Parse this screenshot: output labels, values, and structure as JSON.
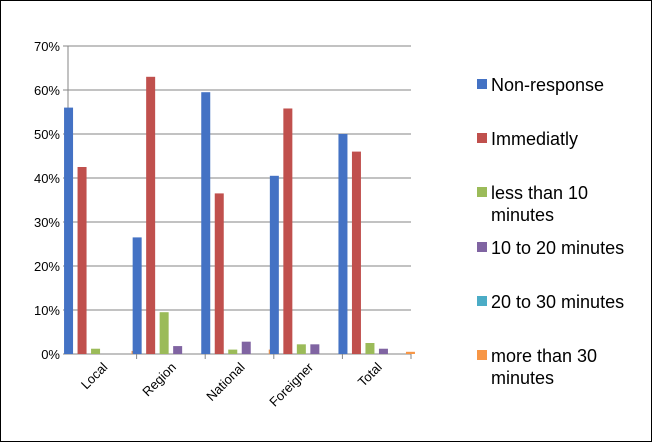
{
  "chart_data": {
    "type": "bar",
    "title": "",
    "xlabel": "",
    "ylabel": "",
    "categories": [
      "Local",
      "Region",
      "National",
      "Foreigner",
      "Total"
    ],
    "ylim": [
      0,
      0.7
    ],
    "yticks": [
      "0%",
      "10%",
      "20%",
      "30%",
      "40%",
      "50%",
      "60%",
      "70%"
    ],
    "grid": true,
    "legend_position": "right",
    "series": [
      {
        "name": "Non-response",
        "color": "#4472C4",
        "values": [
          0.56,
          0.265,
          0.595,
          0.405,
          0.5
        ]
      },
      {
        "name": "Immediatly",
        "color": "#C0504D",
        "values": [
          0.425,
          0.63,
          0.365,
          0.558,
          0.46
        ]
      },
      {
        "name": "less than 10 minutes",
        "color": "#9BBB59",
        "values": [
          0.012,
          0.095,
          0.01,
          0.022,
          0.025
        ]
      },
      {
        "name": "10 to 20 minutes",
        "color": "#8064A2",
        "values": [
          0.0,
          0.018,
          0.028,
          0.022,
          0.012
        ]
      },
      {
        "name": "20 to 30 minutes",
        "color": "#4BACC6",
        "values": [
          0.0,
          0.0,
          0.0,
          0.0,
          0.0
        ]
      },
      {
        "name": "more than 30 minutes",
        "color": "#F79646",
        "values": [
          0.007,
          0.0,
          0.01,
          0.0,
          0.005
        ]
      }
    ]
  }
}
